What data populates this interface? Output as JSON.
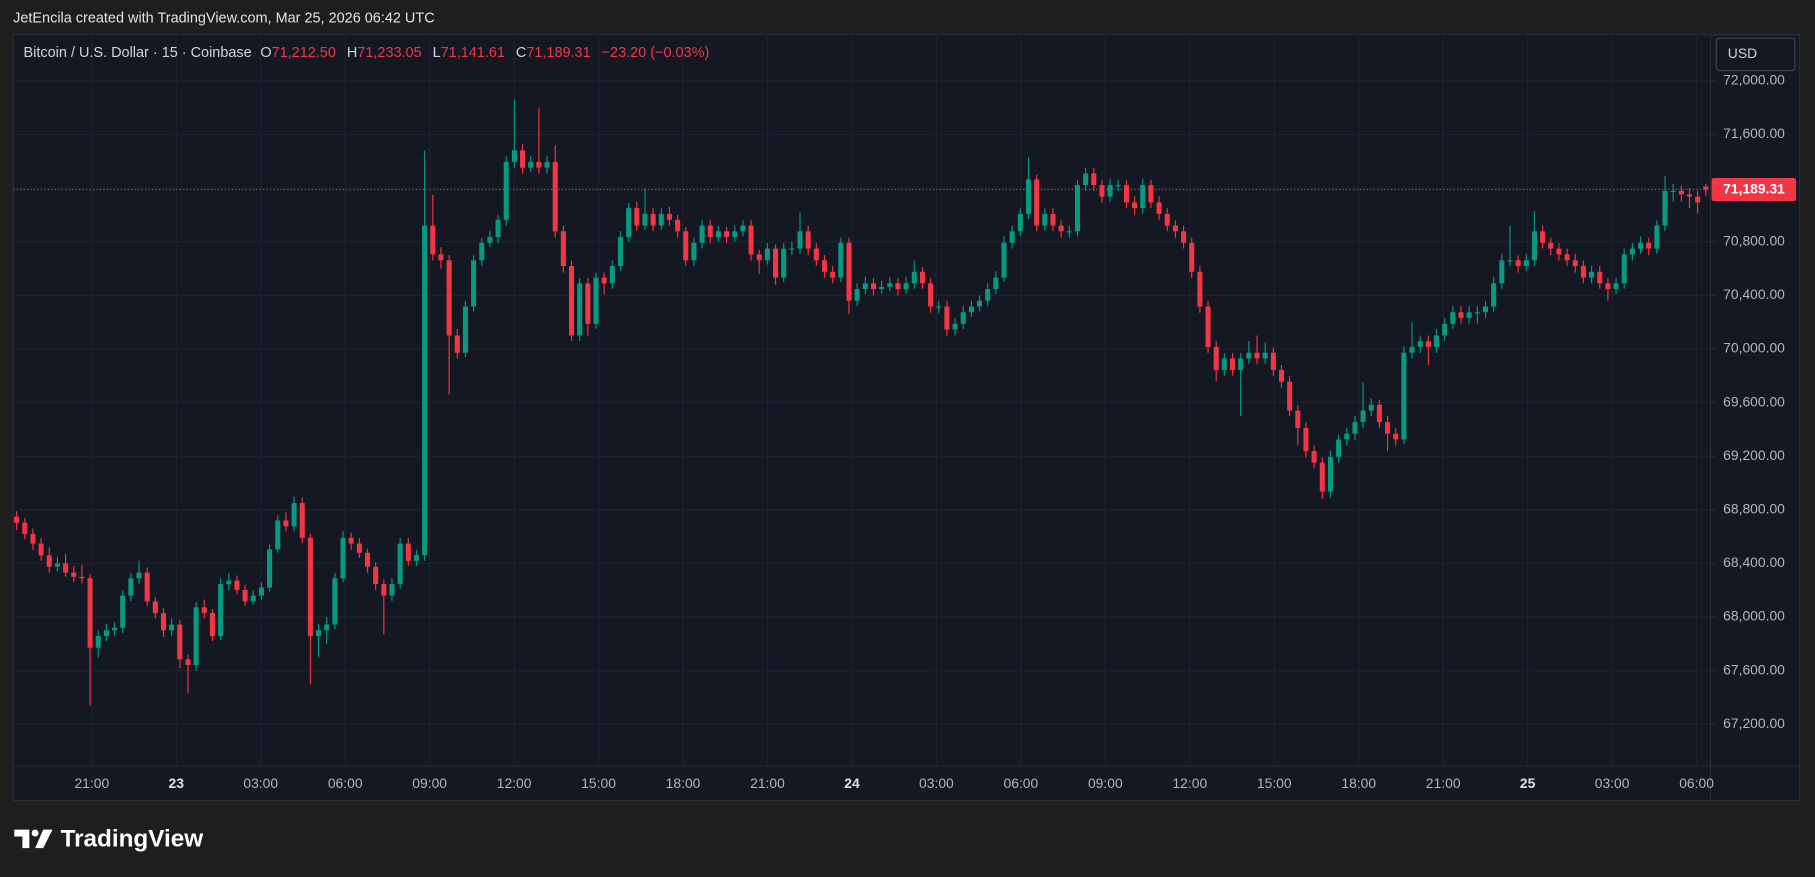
{
  "chart_data": {
    "type": "candlestick",
    "credit": "JetEncila created with TradingView.com, Mar 25, 2026 06:42 UTC",
    "symbol": "Bitcoin / U.S. Dollar · 15 · Coinbase",
    "ohlc_header": {
      "o_label": "O",
      "o": "71,212.50",
      "h_label": "H",
      "h": "71,233.05",
      "l_label": "L",
      "l": "71,141.61",
      "c_label": "C",
      "c": "71,189.31",
      "change": "−23.20 (−0.03%)"
    },
    "currency": "USD",
    "brand": "TradingView",
    "up_color": "#089981",
    "down_color": "#f23645",
    "grid": true,
    "last_price": {
      "value": 71189.31,
      "label": "71,189.31"
    },
    "ylim": [
      66889,
      72345
    ],
    "yticks": [
      {
        "value": 72000,
        "label": "72,000.00"
      },
      {
        "value": 71600,
        "label": "71,600.00"
      },
      {
        "value": 71200,
        "label": "71,200.00"
      },
      {
        "value": 70800,
        "label": "70,800.00"
      },
      {
        "value": 70400,
        "label": "70,400.00"
      },
      {
        "value": 70000,
        "label": "70,000.00"
      },
      {
        "value": 69600,
        "label": "69,600.00"
      },
      {
        "value": 69200,
        "label": "69,200.00"
      },
      {
        "value": 68800,
        "label": "68,800.00"
      },
      {
        "value": 68400,
        "label": "68,400.00"
      },
      {
        "value": 68000,
        "label": "68,000.00"
      },
      {
        "value": 67600,
        "label": "67,600.00"
      },
      {
        "value": 67200,
        "label": "67,200.00"
      }
    ],
    "xtick_labels": [
      "21:00",
      "23",
      "03:00",
      "06:00",
      "09:00",
      "12:00",
      "15:00",
      "18:00",
      "21:00",
      "24",
      "03:00",
      "06:00",
      "09:00",
      "12:00",
      "15:00",
      "18:00",
      "21:00",
      "25",
      "03:00",
      "06:00"
    ],
    "candles": [
      [
        68750,
        68790,
        68650,
        68703
      ],
      [
        68703,
        68740,
        68580,
        68620
      ],
      [
        68620,
        68660,
        68500,
        68548
      ],
      [
        68548,
        68590,
        68420,
        68460
      ],
      [
        68460,
        68520,
        68330,
        68375
      ],
      [
        68375,
        68450,
        68340,
        68400
      ],
      [
        68400,
        68470,
        68300,
        68332
      ],
      [
        68332,
        68380,
        68260,
        68300
      ],
      [
        68300,
        68390,
        68250,
        68289
      ],
      [
        68289,
        68320,
        67340,
        67771
      ],
      [
        67771,
        67900,
        67700,
        67858
      ],
      [
        67858,
        67950,
        67820,
        67901
      ],
      [
        67901,
        67960,
        67860,
        67920
      ],
      [
        67920,
        68200,
        67880,
        68160
      ],
      [
        68160,
        68330,
        68120,
        68289
      ],
      [
        68289,
        68420,
        68250,
        68332
      ],
      [
        68332,
        68370,
        68080,
        68117
      ],
      [
        68117,
        68150,
        67990,
        68030
      ],
      [
        68030,
        68070,
        67850,
        67901
      ],
      [
        67901,
        67990,
        67860,
        67944
      ],
      [
        67944,
        67980,
        67620,
        67685
      ],
      [
        67685,
        67720,
        67430,
        67642
      ],
      [
        67642,
        68110,
        67600,
        68073
      ],
      [
        68073,
        68130,
        67990,
        68030
      ],
      [
        68030,
        68060,
        67820,
        67858
      ],
      [
        67858,
        68290,
        67830,
        68246
      ],
      [
        68246,
        68330,
        68200,
        68272
      ],
      [
        68272,
        68310,
        68170,
        68203
      ],
      [
        68203,
        68240,
        68080,
        68117
      ],
      [
        68117,
        68200,
        68090,
        68160
      ],
      [
        68160,
        68260,
        68130,
        68220
      ],
      [
        68220,
        68540,
        68190,
        68505
      ],
      [
        68505,
        68760,
        68480,
        68721
      ],
      [
        68721,
        68780,
        68640,
        68677
      ],
      [
        68677,
        68900,
        68640,
        68850
      ],
      [
        68850,
        68890,
        68550,
        68591
      ],
      [
        68591,
        68620,
        67500,
        67858
      ],
      [
        67858,
        67950,
        67700,
        67901
      ],
      [
        67901,
        68000,
        67800,
        67944
      ],
      [
        67944,
        68330,
        67910,
        68289
      ],
      [
        68289,
        68640,
        68260,
        68591
      ],
      [
        68591,
        68630,
        68500,
        68548
      ],
      [
        68548,
        68590,
        68440,
        68479
      ],
      [
        68479,
        68510,
        68330,
        68375
      ],
      [
        68375,
        68410,
        68200,
        68246
      ],
      [
        68246,
        68280,
        67870,
        68160
      ],
      [
        68160,
        68290,
        68120,
        68246
      ],
      [
        68246,
        68590,
        68210,
        68548
      ],
      [
        68548,
        68590,
        68380,
        68419
      ],
      [
        68419,
        68500,
        68380,
        68462
      ],
      [
        68462,
        71480,
        68420,
        70921
      ],
      [
        70921,
        71150,
        70660,
        70706
      ],
      [
        70706,
        70760,
        70600,
        70662
      ],
      [
        70662,
        70700,
        69660,
        70101
      ],
      [
        70101,
        70150,
        69930,
        69972
      ],
      [
        69972,
        70360,
        69940,
        70317
      ],
      [
        70317,
        70700,
        70280,
        70662
      ],
      [
        70662,
        70830,
        70620,
        70792
      ],
      [
        70792,
        70880,
        70760,
        70835
      ],
      [
        70835,
        71000,
        70790,
        70964
      ],
      [
        70964,
        71440,
        70920,
        71396
      ],
      [
        71396,
        71860,
        71350,
        71482
      ],
      [
        71482,
        71530,
        71310,
        71353
      ],
      [
        71353,
        71440,
        71320,
        71396
      ],
      [
        71396,
        71800,
        71310,
        71353
      ],
      [
        71353,
        71440,
        71310,
        71396
      ],
      [
        71396,
        71520,
        70830,
        70878
      ],
      [
        70878,
        70920,
        70570,
        70619
      ],
      [
        70619,
        70660,
        70060,
        70101
      ],
      [
        70101,
        70530,
        70060,
        70490
      ],
      [
        70490,
        70530,
        70100,
        70188
      ],
      [
        70188,
        70570,
        70150,
        70533
      ],
      [
        70533,
        70570,
        70410,
        70490
      ],
      [
        70490,
        70660,
        70450,
        70619
      ],
      [
        70619,
        70880,
        70580,
        70835
      ],
      [
        70835,
        71090,
        70800,
        71051
      ],
      [
        71051,
        71100,
        70880,
        70921
      ],
      [
        70921,
        71200,
        70890,
        71008
      ],
      [
        71008,
        71050,
        70880,
        70921
      ],
      [
        70921,
        71050,
        70890,
        71008
      ],
      [
        71008,
        71060,
        70920,
        70964
      ],
      [
        70964,
        71000,
        70830,
        70878
      ],
      [
        70878,
        70910,
        70620,
        70662
      ],
      [
        70662,
        70830,
        70620,
        70792
      ],
      [
        70792,
        70960,
        70750,
        70921
      ],
      [
        70921,
        70960,
        70790,
        70835
      ],
      [
        70835,
        70920,
        70800,
        70878
      ],
      [
        70878,
        70910,
        70790,
        70835
      ],
      [
        70835,
        70920,
        70800,
        70878
      ],
      [
        70878,
        70960,
        70840,
        70921
      ],
      [
        70921,
        70960,
        70660,
        70706
      ],
      [
        70706,
        70740,
        70560,
        70662
      ],
      [
        70662,
        70790,
        70630,
        70749
      ],
      [
        70749,
        70780,
        70480,
        70533
      ],
      [
        70533,
        70790,
        70500,
        70749
      ],
      [
        70749,
        70800,
        70700,
        70749
      ],
      [
        70749,
        71020,
        70710,
        70878
      ],
      [
        70878,
        70920,
        70700,
        70749
      ],
      [
        70749,
        70790,
        70620,
        70662
      ],
      [
        70662,
        70700,
        70530,
        70576
      ],
      [
        70576,
        70620,
        70490,
        70533
      ],
      [
        70533,
        70830,
        70500,
        70792
      ],
      [
        70792,
        70830,
        70260,
        70360
      ],
      [
        70360,
        70490,
        70320,
        70447
      ],
      [
        70447,
        70540,
        70410,
        70490
      ],
      [
        70490,
        70530,
        70400,
        70447
      ],
      [
        70447,
        70510,
        70410,
        70464
      ],
      [
        70464,
        70540,
        70430,
        70490
      ],
      [
        70490,
        70530,
        70400,
        70447
      ],
      [
        70447,
        70540,
        70410,
        70490
      ],
      [
        70490,
        70660,
        70450,
        70576
      ],
      [
        70576,
        70610,
        70450,
        70490
      ],
      [
        70490,
        70530,
        70270,
        70317
      ],
      [
        70317,
        70360,
        70270,
        70317
      ],
      [
        70317,
        70360,
        70100,
        70145
      ],
      [
        70145,
        70230,
        70100,
        70188
      ],
      [
        70188,
        70320,
        70150,
        70274
      ],
      [
        70274,
        70360,
        70240,
        70317
      ],
      [
        70317,
        70400,
        70280,
        70360
      ],
      [
        70360,
        70490,
        70320,
        70447
      ],
      [
        70447,
        70580,
        70410,
        70533
      ],
      [
        70533,
        70840,
        70500,
        70792
      ],
      [
        70792,
        70920,
        70750,
        70878
      ],
      [
        70878,
        71050,
        70840,
        71008
      ],
      [
        71008,
        71430,
        70970,
        71266
      ],
      [
        71266,
        71300,
        70880,
        70921
      ],
      [
        70921,
        71050,
        70880,
        71008
      ],
      [
        71008,
        71050,
        70880,
        70921
      ],
      [
        70921,
        70960,
        70830,
        70878
      ],
      [
        70878,
        70920,
        70830,
        70878
      ],
      [
        70878,
        71260,
        70840,
        71223
      ],
      [
        71223,
        71350,
        71180,
        71310
      ],
      [
        71310,
        71350,
        71180,
        71223
      ],
      [
        71223,
        71260,
        71090,
        71137
      ],
      [
        71137,
        71270,
        71100,
        71223
      ],
      [
        71223,
        71260,
        71180,
        71223
      ],
      [
        71223,
        71260,
        71050,
        71094
      ],
      [
        71094,
        71140,
        71000,
        71051
      ],
      [
        71051,
        71270,
        71010,
        71223
      ],
      [
        71223,
        71260,
        71050,
        71094
      ],
      [
        71094,
        71140,
        70960,
        71008
      ],
      [
        71008,
        71050,
        70880,
        70921
      ],
      [
        70921,
        70960,
        70830,
        70878
      ],
      [
        70878,
        70920,
        70750,
        70792
      ],
      [
        70792,
        70830,
        70530,
        70576
      ],
      [
        70576,
        70620,
        70270,
        70317
      ],
      [
        70317,
        70360,
        69970,
        70015
      ],
      [
        70015,
        70060,
        69760,
        69843
      ],
      [
        69843,
        69970,
        69800,
        69929
      ],
      [
        69929,
        69970,
        69800,
        69843
      ],
      [
        69843,
        69970,
        69500,
        69929
      ],
      [
        69929,
        70060,
        69890,
        69972
      ],
      [
        69972,
        70100,
        69890,
        69929
      ],
      [
        69929,
        70050,
        69890,
        69972
      ],
      [
        69972,
        70010,
        69800,
        69843
      ],
      [
        69843,
        69880,
        69710,
        69756
      ],
      [
        69756,
        69800,
        69500,
        69540
      ],
      [
        69540,
        69580,
        69280,
        69411
      ],
      [
        69411,
        69450,
        69190,
        69238
      ],
      [
        69238,
        69280,
        69110,
        69152
      ],
      [
        69152,
        69190,
        68880,
        68936
      ],
      [
        68936,
        69240,
        68890,
        69195
      ],
      [
        69195,
        69360,
        69150,
        69325
      ],
      [
        69325,
        69410,
        69280,
        69368
      ],
      [
        69368,
        69500,
        69320,
        69454
      ],
      [
        69454,
        69750,
        69410,
        69540
      ],
      [
        69540,
        69630,
        69500,
        69584
      ],
      [
        69584,
        69620,
        69410,
        69454
      ],
      [
        69454,
        69500,
        69240,
        69368
      ],
      [
        69368,
        69410,
        69280,
        69325
      ],
      [
        69325,
        70020,
        69290,
        69972
      ],
      [
        69972,
        70200,
        69930,
        70015
      ],
      [
        70015,
        70100,
        69970,
        70058
      ],
      [
        70058,
        70100,
        69880,
        70015
      ],
      [
        70015,
        70150,
        69970,
        70101
      ],
      [
        70101,
        70230,
        70060,
        70188
      ],
      [
        70188,
        70320,
        70150,
        70274
      ],
      [
        70274,
        70320,
        70190,
        70231
      ],
      [
        70231,
        70320,
        70190,
        70274
      ],
      [
        70274,
        70320,
        70190,
        70274
      ],
      [
        70274,
        70360,
        70230,
        70317
      ],
      [
        70317,
        70540,
        70280,
        70490
      ],
      [
        70490,
        70710,
        70450,
        70662
      ],
      [
        70662,
        70920,
        70620,
        70662
      ],
      [
        70662,
        70700,
        70570,
        70619
      ],
      [
        70619,
        70710,
        70580,
        70662
      ],
      [
        70662,
        71030,
        70620,
        70878
      ],
      [
        70878,
        70920,
        70750,
        70792
      ],
      [
        70792,
        70830,
        70700,
        70749
      ],
      [
        70749,
        70790,
        70660,
        70706
      ],
      [
        70706,
        70750,
        70620,
        70662
      ],
      [
        70662,
        70710,
        70570,
        70619
      ],
      [
        70619,
        70660,
        70490,
        70533
      ],
      [
        70533,
        70620,
        70490,
        70576
      ],
      [
        70576,
        70620,
        70450,
        70490
      ],
      [
        70490,
        70530,
        70360,
        70447
      ],
      [
        70447,
        70530,
        70410,
        70490
      ],
      [
        70490,
        70750,
        70450,
        70706
      ],
      [
        70706,
        70790,
        70660,
        70749
      ],
      [
        70749,
        70840,
        70710,
        70792
      ],
      [
        70792,
        70830,
        70700,
        70749
      ],
      [
        70749,
        70960,
        70710,
        70921
      ],
      [
        70921,
        71290,
        70880,
        71180
      ],
      [
        71180,
        71230,
        71100,
        71180
      ],
      [
        71180,
        71220,
        71100,
        71154
      ],
      [
        71154,
        71200,
        71050,
        71137
      ],
      [
        71137,
        71180,
        71010,
        71094
      ],
      [
        71212.5,
        71233.05,
        71141.61,
        71189.31
      ]
    ]
  }
}
